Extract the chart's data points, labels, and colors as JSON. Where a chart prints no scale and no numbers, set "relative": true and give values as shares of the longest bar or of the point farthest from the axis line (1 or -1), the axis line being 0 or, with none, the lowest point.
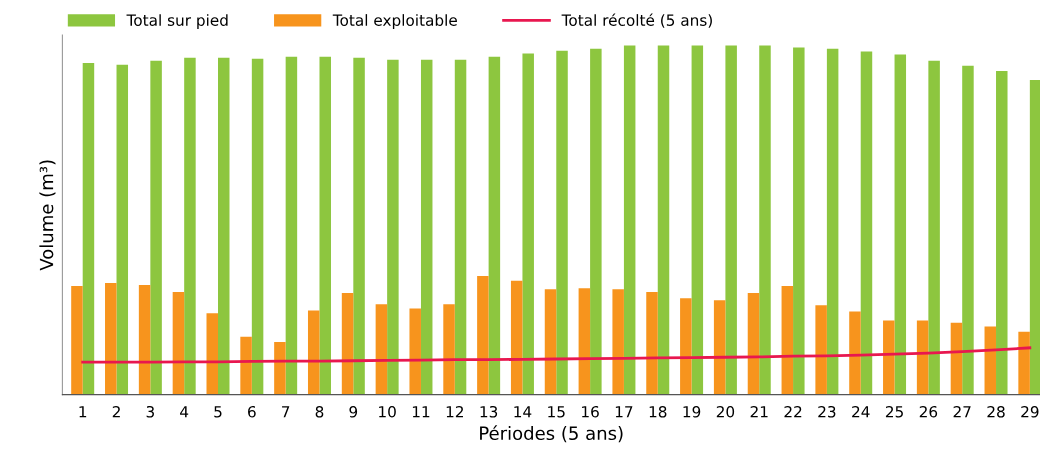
{
  "chart_data": {
    "type": "bar",
    "relative": true,
    "xlabel": "Périodes (5 ans)",
    "ylabel": "Volume (m³)",
    "legend": "top left",
    "grid": false,
    "categories": [
      "1",
      "2",
      "3",
      "4",
      "5",
      "6",
      "7",
      "8",
      "9",
      "10",
      "11",
      "12",
      "13",
      "14",
      "15",
      "16",
      "17",
      "18",
      "19",
      "20",
      "21",
      "22",
      "23",
      "24",
      "25",
      "26",
      "27",
      "28",
      "29"
    ],
    "series": [
      {
        "name": "Total sur pied",
        "color": "#8dc63f",
        "values": [
          0.95,
          0.945,
          0.956,
          0.965,
          0.965,
          0.962,
          0.968,
          0.968,
          0.965,
          0.959,
          0.959,
          0.959,
          0.968,
          0.977,
          0.985,
          0.991,
          1,
          1,
          1,
          1,
          1,
          0.994,
          0.991,
          0.983,
          0.974,
          0.956,
          0.942,
          0.927,
          0.901
        ]
      },
      {
        "name": "Total exploitable",
        "color": "#f7941d",
        "values": [
          0.311,
          0.32,
          0.314,
          0.294,
          0.233,
          0.166,
          0.151,
          0.241,
          0.291,
          0.259,
          0.247,
          0.259,
          0.34,
          0.326,
          0.302,
          0.305,
          0.302,
          0.294,
          0.276,
          0.27,
          0.291,
          0.311,
          0.256,
          0.238,
          0.212,
          0.212,
          0.206,
          0.195,
          0.18
        ]
      },
      {
        "name": "Total récolté (5 ans)",
        "color": "#e8174f",
        "type": "line",
        "values": [
          0.093,
          0.093,
          0.093,
          0.094,
          0.094,
          0.095,
          0.096,
          0.096,
          0.097,
          0.098,
          0.099,
          0.1,
          0.1,
          0.101,
          0.102,
          0.103,
          0.104,
          0.105,
          0.106,
          0.107,
          0.108,
          0.11,
          0.111,
          0.113,
          0.116,
          0.119,
          0.123,
          0.128,
          0.134
        ]
      }
    ]
  }
}
